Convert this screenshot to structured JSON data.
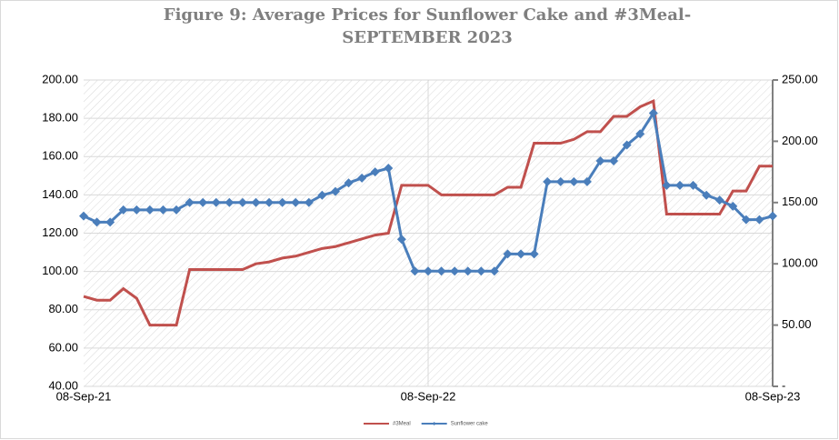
{
  "chart_data": {
    "type": "line",
    "title": [
      "Figure 9: Average Prices for Sunflower Cake and #3Meal-",
      "SEPTEMBER  2023"
    ],
    "categories": [
      "08-Sep-21",
      null,
      null,
      null,
      null,
      null,
      null,
      null,
      null,
      null,
      null,
      null,
      null,
      null,
      null,
      null,
      null,
      null,
      null,
      null,
      null,
      null,
      null,
      null,
      null,
      null,
      "08-Sep-22",
      null,
      null,
      null,
      null,
      null,
      null,
      null,
      null,
      null,
      null,
      null,
      null,
      null,
      null,
      null,
      null,
      null,
      null,
      null,
      null,
      null,
      null,
      null,
      null,
      null,
      "08-Sep-23"
    ],
    "series": [
      {
        "name": "#3Meal",
        "color": "#c0504d",
        "axis": "y",
        "values": [
          87,
          85,
          85,
          91,
          86,
          72,
          72,
          72,
          101,
          101,
          101,
          101,
          101,
          104,
          105,
          107,
          108,
          110,
          112,
          113,
          115,
          117,
          119,
          120,
          145,
          145,
          145,
          140,
          140,
          140,
          140,
          140,
          144,
          144,
          167,
          167,
          167,
          169,
          173,
          173,
          181,
          181,
          186,
          189,
          130,
          130,
          130,
          130,
          130,
          142,
          142,
          155,
          155
        ]
      },
      {
        "name": "Sunflower cake",
        "color": "#4a7ebb",
        "axis": "y2",
        "values": [
          139,
          134,
          134,
          144,
          144,
          144,
          144,
          144,
          150,
          150,
          150,
          150,
          150,
          150,
          150,
          150,
          150,
          150,
          156,
          159,
          166,
          170,
          175,
          178,
          120,
          94,
          94,
          94,
          94,
          94,
          94,
          94,
          108,
          108,
          108,
          167,
          167,
          167,
          167,
          184,
          184,
          197,
          206,
          223,
          164,
          164,
          164,
          156,
          152,
          147,
          136,
          136,
          139
        ]
      }
    ],
    "ylim": [
      40,
      200
    ],
    "yticks": [
      {
        "value": 40,
        "label": "40.00"
      },
      {
        "value": 60,
        "label": "60.00"
      },
      {
        "value": 80,
        "label": "80.00"
      },
      {
        "value": 100,
        "label": "100.00"
      },
      {
        "value": 120,
        "label": "120.00"
      },
      {
        "value": 140,
        "label": "140.00"
      },
      {
        "value": 160,
        "label": "160.00"
      },
      {
        "value": 180,
        "label": "180.00"
      },
      {
        "value": 200,
        "label": "200.00"
      }
    ],
    "y2lim": [
      0,
      250
    ],
    "y2ticks": [
      {
        "value": 0,
        "label": "-"
      },
      {
        "value": 50,
        "label": "50.00"
      },
      {
        "value": 100,
        "label": "100.00"
      },
      {
        "value": 150,
        "label": "150.00"
      },
      {
        "value": 200,
        "label": "200.00"
      },
      {
        "value": 250,
        "label": "250.00"
      }
    ],
    "grid": true,
    "legend": "bottom"
  }
}
